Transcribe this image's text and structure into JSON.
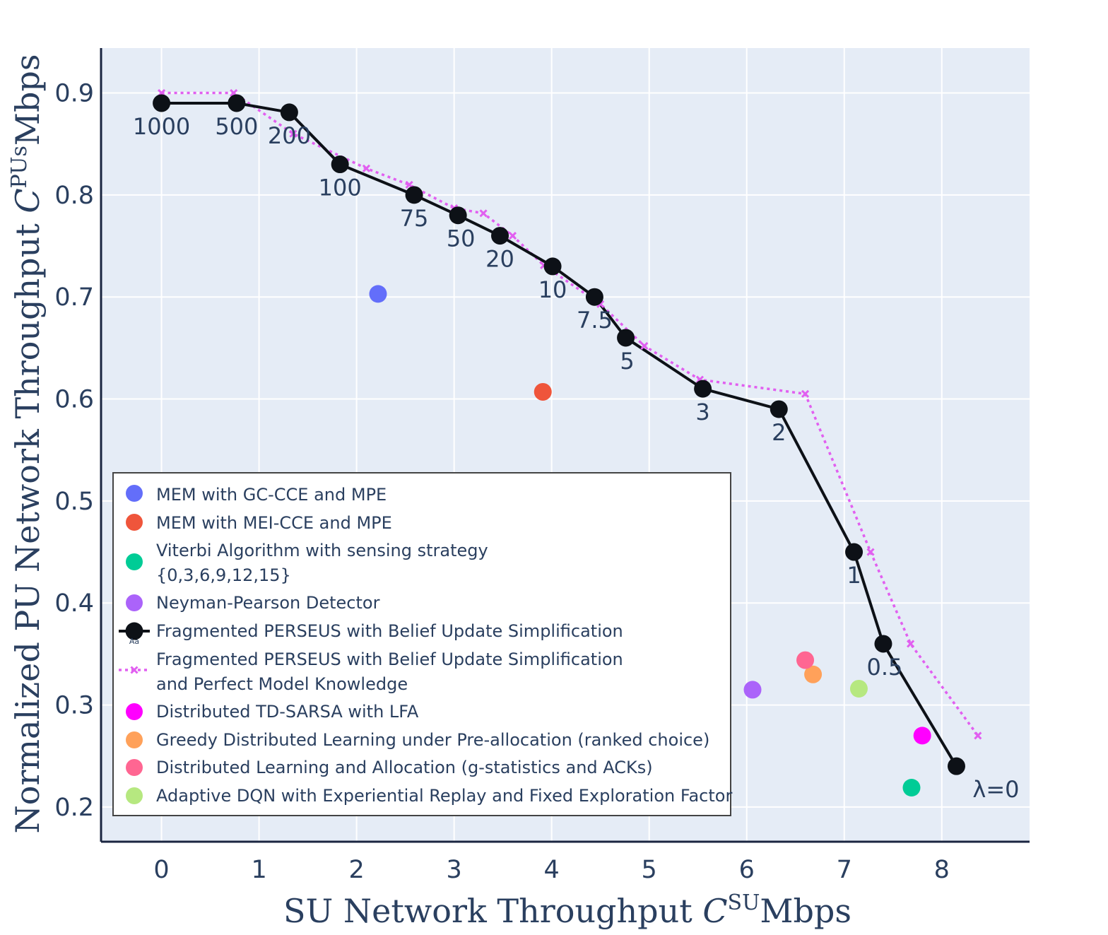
{
  "chart_data": {
    "type": "scatter",
    "xlabel": {
      "main": "SU Network Throughput ",
      "var": "C",
      "sup": "SU",
      "unit": "Mbps"
    },
    "ylabel": {
      "main": "Normalized PU Network Throughput ",
      "var": "C",
      "sup": "PUs",
      "unit": "Mbps"
    },
    "xlim": [
      -0.62,
      8.9
    ],
    "ylim": [
      0.166,
      0.944
    ],
    "xticks": [
      0,
      1,
      2,
      3,
      4,
      5,
      6,
      7,
      8
    ],
    "yticks": [
      0.2,
      0.3,
      0.4,
      0.5,
      0.6,
      0.7,
      0.8,
      0.9
    ],
    "ytick_labels": [
      "0.2",
      "0.3",
      "0.4",
      "0.5",
      "0.6",
      "0.7",
      "0.8",
      "0.9"
    ],
    "grid": true,
    "legend_position": "bottom-left",
    "series": [
      {
        "name": "MEM with GC-CCE and MPE",
        "mode": "markers",
        "color": "#636efa",
        "x": [
          2.22
        ],
        "y": [
          0.703
        ]
      },
      {
        "name": "MEM with MEI-CCE and MPE",
        "mode": "markers",
        "color": "#ef553b",
        "x": [
          3.91
        ],
        "y": [
          0.607
        ]
      },
      {
        "name": "Viterbi Algorithm with sensing strategy {0,3,6,9,12,15}",
        "name_lines": [
          "Viterbi Algorithm with sensing strategy",
          "{0,3,6,9,12,15}"
        ],
        "mode": "markers",
        "color": "#00cc96",
        "x": [
          7.69
        ],
        "y": [
          0.219
        ]
      },
      {
        "name": "Neyman-Pearson Detector",
        "mode": "markers",
        "color": "#ab63fa",
        "x": [
          6.06
        ],
        "y": [
          0.315
        ]
      },
      {
        "name": "Fragmented PERSEUS with Belief Update Simplification",
        "mode": "lines+markers+text",
        "color": "#0d1117",
        "x": [
          0,
          0.77,
          1.31,
          1.83,
          2.59,
          3.04,
          3.47,
          4.01,
          4.44,
          4.76,
          5.55,
          6.33,
          7.1,
          7.4,
          8.15
        ],
        "y": [
          0.89,
          0.89,
          0.881,
          0.83,
          0.8,
          0.78,
          0.76,
          0.73,
          0.7,
          0.66,
          0.61,
          0.59,
          0.45,
          0.36,
          0.24
        ],
        "text": [
          "1000",
          "500",
          "200",
          "100",
          "75",
          "50",
          "20",
          "10",
          "7.5",
          "5",
          "3",
          "2",
          "1",
          "0.5",
          "λ=0"
        ]
      },
      {
        "name": "Fragmented PERSEUS with Belief Update Simplification and Perfect Model Knowledge",
        "name_lines": [
          "Fragmented PERSEUS with Belief Update Simplification",
          "and Perfect Model Knowledge"
        ],
        "mode": "lines+markers",
        "dash": "dot",
        "color": "#e15ff0",
        "x": [
          0,
          0.74,
          1.35,
          2.1,
          2.54,
          3.0,
          3.3,
          3.6,
          3.92,
          4.5,
          4.95,
          5.52,
          6.6,
          7.27,
          7.68,
          8.37
        ],
        "y": [
          0.9,
          0.9,
          0.86,
          0.826,
          0.81,
          0.787,
          0.782,
          0.76,
          0.731,
          0.693,
          0.652,
          0.619,
          0.605,
          0.45,
          0.36,
          0.27
        ]
      },
      {
        "name": "Distributed TD-SARSA with LFA",
        "mode": "markers",
        "color": "#ff00ff",
        "x": [
          7.8
        ],
        "y": [
          0.27
        ]
      },
      {
        "name": "Greedy Distributed Learning under Pre-allocation (ranked choice)",
        "mode": "markers",
        "color": "#ffa15a",
        "x": [
          6.68
        ],
        "y": [
          0.33
        ]
      },
      {
        "name": "Distributed Learning and Allocation (g-statistics and ACKs)",
        "mode": "markers",
        "color": "#ff6692",
        "x": [
          6.6
        ],
        "y": [
          0.344
        ]
      },
      {
        "name": "Adaptive DQN with Experiential Replay and Fixed Exploration Factor",
        "mode": "markers",
        "color": "#b6e880",
        "x": [
          7.15
        ],
        "y": [
          0.316
        ]
      }
    ],
    "legend_marker_label": "Aa"
  }
}
